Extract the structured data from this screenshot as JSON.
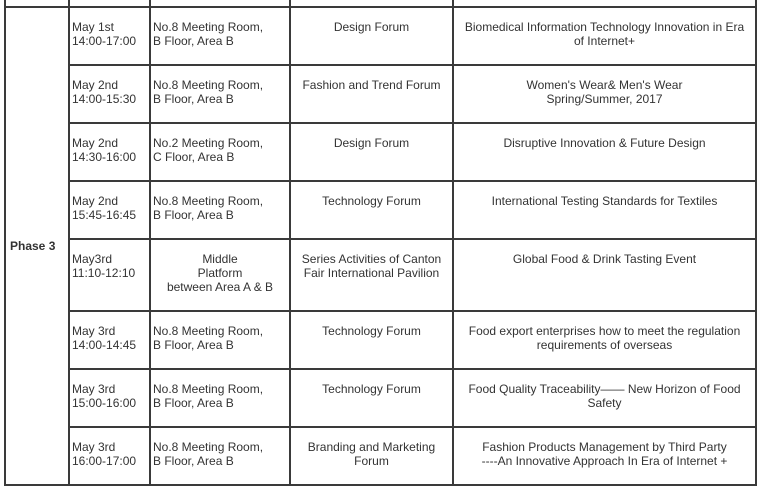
{
  "phase_label": "Phase 3",
  "rows": [
    {
      "date": "May 1st",
      "time": "14:00-17:00",
      "venue": [
        "No.8 Meeting Room,",
        "B Floor, Area B"
      ],
      "forum": [
        "Design Forum"
      ],
      "topic": [
        "Biomedical Information Technology Innovation in Era",
        "of Internet+"
      ]
    },
    {
      "date": "May 2nd",
      "time": "14:00-15:30",
      "venue": [
        "No.8 Meeting Room,",
        "B Floor, Area B"
      ],
      "forum": [
        "Fashion and Trend Forum"
      ],
      "topic": [
        "Women's Wear& Men's Wear",
        "Spring/Summer, 2017"
      ]
    },
    {
      "date": "May 2nd",
      "time": "14:30-16:00",
      "venue": [
        "No.2 Meeting Room,",
        "C Floor, Area B"
      ],
      "forum": [
        "Design Forum"
      ],
      "topic": [
        "Disruptive Innovation & Future Design"
      ]
    },
    {
      "date": "May 2nd",
      "time": "15:45-16:45",
      "venue": [
        "No.8 Meeting Room,",
        "B Floor, Area B"
      ],
      "forum": [
        "Technology Forum"
      ],
      "topic": [
        "International Testing Standards for Textiles"
      ]
    },
    {
      "date": "May3rd",
      "time": "11:10-12:10",
      "venue": [
        "Middle",
        "Platform",
        "between Area A & B"
      ],
      "forum": [
        "Series Activities of Canton",
        "Fair International Pavilion"
      ],
      "topic": [
        "Global Food & Drink Tasting Event"
      ]
    },
    {
      "date": "May 3rd",
      "time": "14:00-14:45",
      "venue": [
        "No.8 Meeting Room,",
        "B Floor, Area B"
      ],
      "forum": [
        "Technology Forum"
      ],
      "topic": [
        "Food export enterprises how to meet the regulation",
        "requirements of overseas"
      ]
    },
    {
      "date": "May 3rd",
      "time": "15:00-16:00",
      "venue": [
        "No.8 Meeting Room,",
        "B Floor, Area B"
      ],
      "forum": [
        "Technology Forum"
      ],
      "topic": [
        "Food Quality Traceability—— New Horizon of Food",
        "Safety"
      ]
    },
    {
      "date": "May 3rd",
      "time": "16:00-17:00",
      "venue": [
        "No.8 Meeting Room,",
        "B Floor, Area B"
      ],
      "forum": [
        "Branding and Marketing",
        "Forum"
      ],
      "topic": [
        "Fashion Products Management by Third Party",
        "----An Innovative Approach In Era of Internet +"
      ]
    }
  ]
}
